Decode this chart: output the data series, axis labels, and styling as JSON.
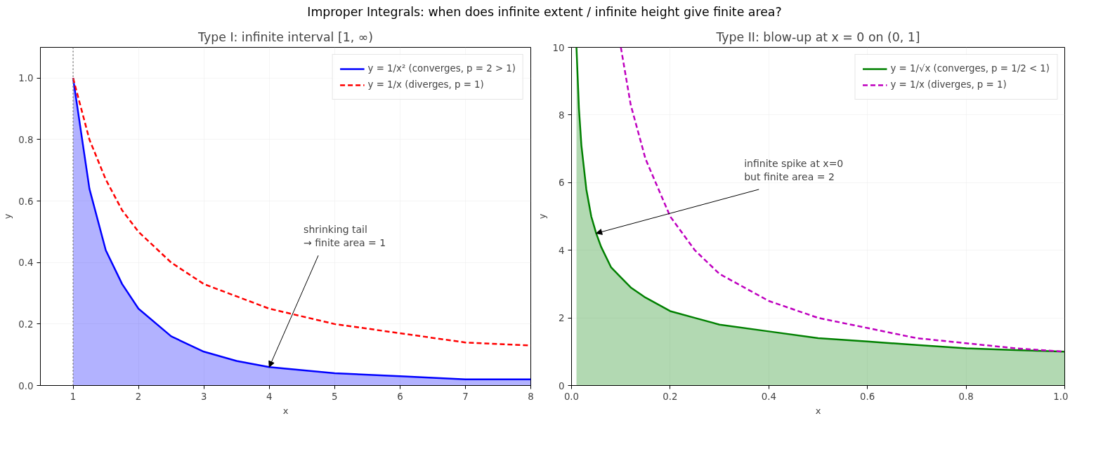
{
  "chart_data": [
    {
      "type": "line",
      "title": "Type I: infinite interval [1, ∞)",
      "xlabel": "x",
      "ylabel": "y",
      "annotations": [
        "Improper Integrals: when does infinite extent / infinite height give finite area?",
        {
          "text": "shrinking tail\n→ finite area = 1",
          "x": 4,
          "y": 0.06
        }
      ],
      "x": [
        1,
        1.25,
        1.5,
        1.75,
        2,
        2.5,
        3,
        3.5,
        4,
        5,
        6,
        7,
        8
      ],
      "series": [
        {
          "type": "area",
          "name": "y = 1/x² (converges, p = 2 > 1)",
          "color": "#0000ff",
          "line_style": "solid",
          "values": [
            1,
            0.64,
            0.44,
            0.33,
            0.25,
            0.16,
            0.11,
            0.08,
            0.06,
            0.04,
            0.03,
            0.02,
            0.02
          ]
        },
        {
          "name": "y = 1/x (diverges, p = 1)",
          "color": "#ff0000",
          "line_style": "dashed",
          "values": [
            1,
            0.8,
            0.67,
            0.57,
            0.5,
            0.4,
            0.33,
            0.29,
            0.25,
            0.2,
            0.17,
            0.14,
            0.13
          ]
        }
      ],
      "xlim": [
        0.5,
        8
      ],
      "ylim": [
        0,
        1.1
      ],
      "xticks": [
        1,
        2,
        3,
        4,
        5,
        6,
        7,
        8
      ],
      "yticks": [
        {
          "value": 0,
          "label": "0.0"
        },
        0.2,
        0.4,
        0.6,
        0.8,
        {
          "value": 1,
          "label": "1.0"
        }
      ],
      "ref_lines": [
        {
          "axis": "x",
          "value": 1,
          "color": "#808080",
          "line_style": "dotted"
        }
      ],
      "grid": true,
      "legend": "top right"
    },
    {
      "type": "line",
      "title": "Type II: blow-up at x = 0 on (0, 1]",
      "xlabel": "x",
      "ylabel": "y",
      "annotations": [
        {
          "text": "infinite spike at x=0\nbut finite area = 2",
          "x": 0.05,
          "y": 4.5
        }
      ],
      "series": [
        {
          "type": "area",
          "name": "y = 1/√x (converges, p = 1/2 < 1)",
          "color": "#008000",
          "line_style": "solid",
          "x": [
            0.01,
            0.015,
            0.02,
            0.03,
            0.04,
            0.05,
            0.06,
            0.08,
            0.1,
            0.12,
            0.15,
            0.2,
            0.25,
            0.3,
            0.4,
            0.5,
            0.6,
            0.7,
            0.8,
            0.9,
            1.0
          ],
          "values": [
            10,
            8.2,
            7.1,
            5.8,
            5,
            4.5,
            4.1,
            3.5,
            3.2,
            2.9,
            2.6,
            2.2,
            2,
            1.8,
            1.6,
            1.4,
            1.3,
            1.2,
            1.1,
            1.05,
            1
          ]
        },
        {
          "name": "y = 1/x (diverges, p = 1)",
          "color": "#bf00bf",
          "line_style": "dashed",
          "x": [
            0.1,
            0.12,
            0.15,
            0.2,
            0.25,
            0.3,
            0.4,
            0.5,
            0.6,
            0.7,
            0.8,
            0.9,
            1.0
          ],
          "values": [
            10,
            8.3,
            6.7,
            5,
            4,
            3.3,
            2.5,
            2,
            1.7,
            1.4,
            1.25,
            1.1,
            1
          ]
        }
      ],
      "xlim": [
        0,
        1
      ],
      "ylim": [
        0,
        10
      ],
      "xticks": [
        {
          "value": 0,
          "label": "0.0"
        },
        0.2,
        0.4,
        0.6,
        0.8,
        {
          "value": 1,
          "label": "1.0"
        }
      ],
      "yticks": [
        0,
        2,
        4,
        6,
        8,
        10
      ],
      "grid": true,
      "legend": "top right"
    }
  ]
}
